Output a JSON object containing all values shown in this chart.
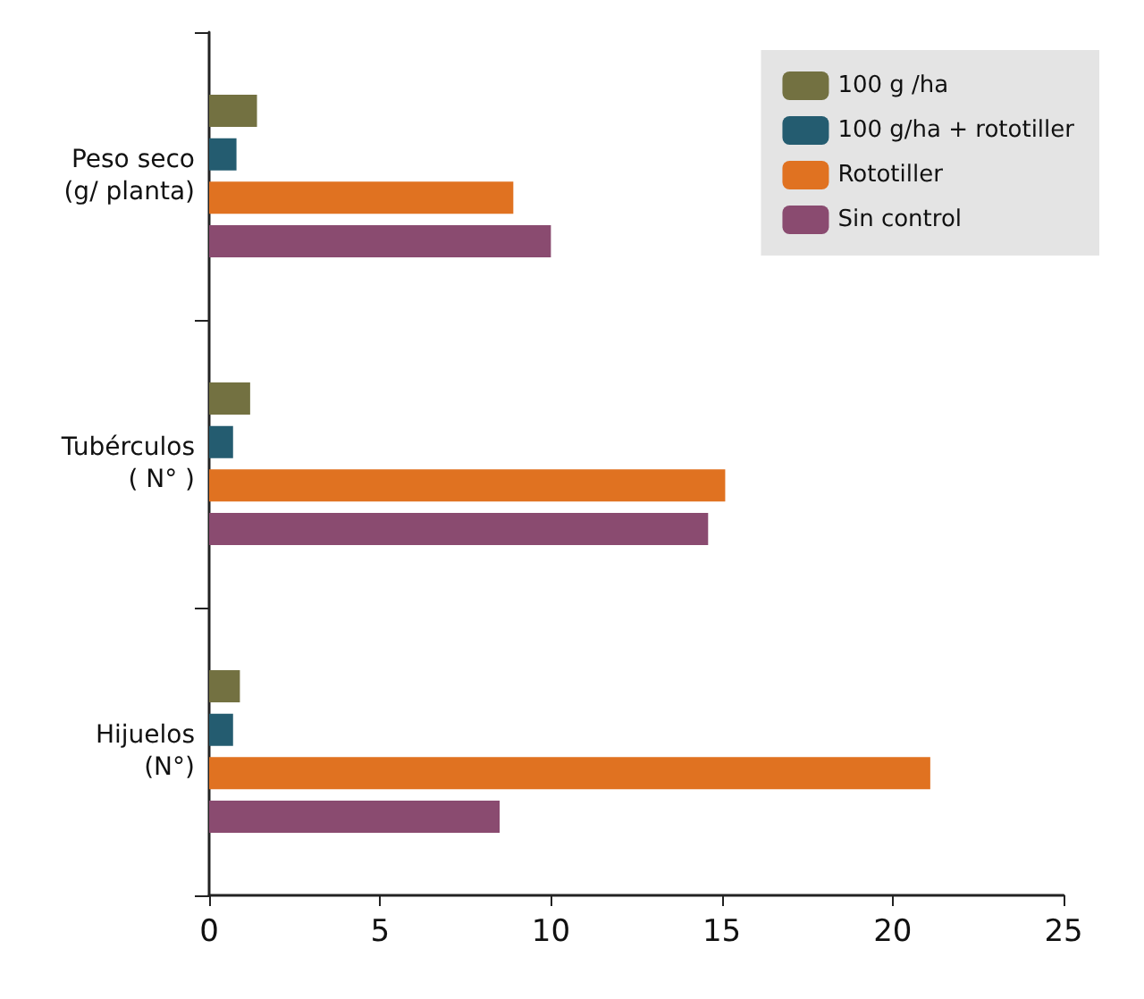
{
  "chart_data": {
    "type": "bar",
    "orientation": "horizontal",
    "categories": [
      "Peso seco\n(g/ planta)",
      "Tubérculos\n( N° )",
      "Hijuelos\n(N°)"
    ],
    "series": [
      {
        "name": "100 g /ha",
        "color": "#737141",
        "values": [
          1.4,
          1.2,
          0.9
        ]
      },
      {
        "name": "100 g/ha + rototiller",
        "color": "#245c70",
        "values": [
          0.8,
          0.7,
          0.7
        ]
      },
      {
        "name": "Rototiller",
        "color": "#e07221",
        "values": [
          8.9,
          15.1,
          21.1
        ]
      },
      {
        "name": "Sin control",
        "color": "#8a4b70",
        "values": [
          10.0,
          14.6,
          8.5
        ]
      }
    ],
    "xlim": [
      0,
      25
    ],
    "xticks": [
      0,
      5,
      10,
      15,
      20,
      25
    ],
    "grid": false,
    "legend": "top right"
  }
}
